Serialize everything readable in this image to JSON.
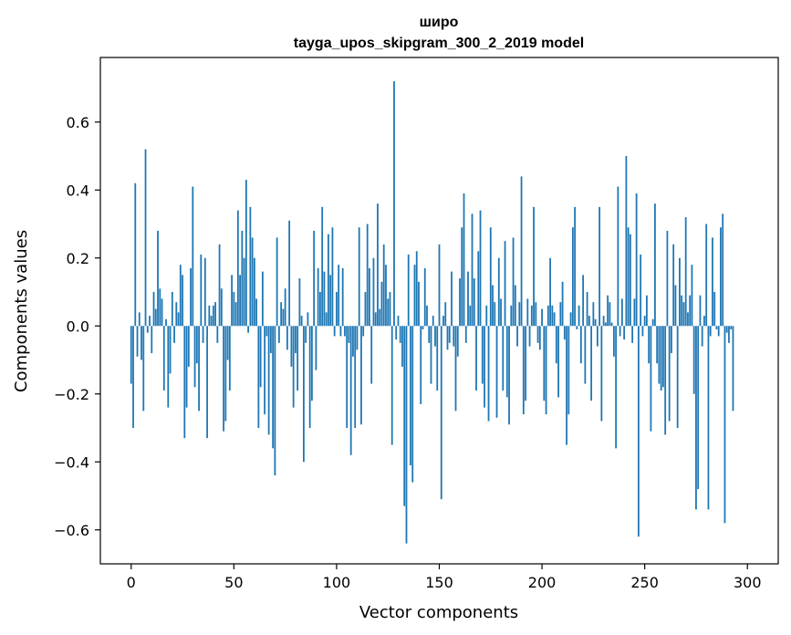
{
  "chart_data": {
    "type": "bar",
    "title": "широ",
    "subtitle": "tayga_upos_skipgram_300_2_2019 model",
    "xlabel": "Vector components",
    "ylabel": "Components values",
    "xlim": [
      -15,
      315
    ],
    "ylim": [
      -0.7,
      0.79
    ],
    "xticks": [
      0,
      50,
      100,
      150,
      200,
      250,
      300
    ],
    "yticks": [
      -0.6,
      -0.4,
      -0.2,
      0.0,
      0.2,
      0.4,
      0.6
    ],
    "ytick_labels": [
      "−0.6",
      "−0.4",
      "−0.2",
      "0.0",
      "0.2",
      "0.4",
      "0.6"
    ],
    "bar_color": "#1f77b4",
    "values": [
      -0.17,
      -0.3,
      0.42,
      -0.09,
      0.04,
      -0.1,
      -0.25,
      0.52,
      -0.02,
      0.03,
      -0.08,
      0.1,
      0.05,
      0.28,
      0.11,
      0.08,
      -0.19,
      0.02,
      -0.24,
      -0.14,
      0.1,
      -0.05,
      0.07,
      0.04,
      0.18,
      0.15,
      -0.33,
      -0.24,
      -0.12,
      0.17,
      0.41,
      -0.18,
      -0.11,
      -0.25,
      0.21,
      -0.05,
      0.2,
      -0.33,
      0.06,
      0.03,
      0.06,
      0.07,
      -0.05,
      0.24,
      0.11,
      -0.31,
      -0.28,
      -0.1,
      -0.19,
      0.15,
      0.1,
      0.07,
      0.34,
      0.15,
      0.28,
      0.2,
      0.43,
      -0.02,
      0.35,
      0.26,
      0.2,
      0.08,
      -0.3,
      -0.18,
      0.16,
      -0.26,
      -0.03,
      -0.32,
      -0.08,
      -0.36,
      -0.44,
      0.26,
      -0.05,
      0.07,
      0.05,
      0.11,
      -0.07,
      0.31,
      -0.12,
      -0.24,
      -0.08,
      -0.19,
      0.14,
      0.03,
      -0.4,
      -0.05,
      0.04,
      -0.3,
      -0.22,
      0.28,
      -0.13,
      0.17,
      0.1,
      0.35,
      0.16,
      0.04,
      0.27,
      0.15,
      0.29,
      -0.03,
      0.1,
      0.18,
      -0.03,
      0.17,
      -0.03,
      -0.3,
      -0.05,
      -0.38,
      -0.09,
      -0.3,
      -0.07,
      0.29,
      -0.29,
      -0.03,
      0.1,
      0.3,
      0.17,
      -0.17,
      0.2,
      0.04,
      0.36,
      0.05,
      0.13,
      0.24,
      0.18,
      0.08,
      0.1,
      -0.35,
      0.72,
      -0.04,
      0.03,
      -0.05,
      -0.12,
      -0.53,
      -0.64,
      0.21,
      -0.41,
      -0.46,
      0.18,
      0.22,
      0.13,
      -0.23,
      -0.01,
      0.17,
      0.06,
      -0.05,
      -0.17,
      0.03,
      -0.06,
      -0.19,
      0.24,
      -0.51,
      0.03,
      0.07,
      -0.07,
      -0.05,
      0.16,
      -0.06,
      -0.25,
      -0.09,
      0.14,
      0.29,
      0.39,
      -0.05,
      0.16,
      0.06,
      0.33,
      0.14,
      -0.19,
      0.22,
      0.34,
      -0.17,
      -0.24,
      0.06,
      -0.28,
      0.29,
      0.12,
      0.07,
      -0.27,
      0.2,
      0.08,
      -0.19,
      0.25,
      -0.21,
      -0.29,
      0.06,
      0.26,
      0.12,
      -0.06,
      0.07,
      0.44,
      -0.26,
      -0.22,
      0.08,
      -0.06,
      0.06,
      0.35,
      0.07,
      -0.05,
      -0.07,
      0.05,
      -0.22,
      -0.26,
      0.06,
      0.2,
      0.06,
      0.04,
      -0.11,
      -0.21,
      0.07,
      0.13,
      -0.04,
      -0.35,
      -0.26,
      0.04,
      0.29,
      0.35,
      -0.01,
      0.06,
      -0.11,
      0.15,
      -0.17,
      0.1,
      0.03,
      -0.22,
      0.07,
      0.02,
      -0.06,
      0.35,
      -0.28,
      0.03,
      0.01,
      0.09,
      0.07,
      0.01,
      -0.09,
      -0.36,
      0.41,
      -0.03,
      0.08,
      -0.04,
      0.5,
      0.29,
      0.27,
      -0.05,
      0.08,
      0.39,
      -0.62,
      0.21,
      -0.03,
      0.03,
      0.09,
      -0.11,
      -0.31,
      0.02,
      0.36,
      -0.11,
      -0.17,
      -0.19,
      -0.18,
      -0.32,
      0.28,
      -0.28,
      -0.08,
      0.24,
      0.12,
      -0.3,
      0.2,
      0.09,
      0.07,
      0.32,
      0.04,
      0.09,
      0.18,
      -0.2,
      -0.54,
      -0.48,
      0.09,
      -0.06,
      0.03,
      0.3,
      -0.54,
      -0.03,
      0.26,
      0.1,
      -0.01,
      -0.03,
      0.29,
      0.33,
      -0.58,
      -0.02,
      -0.05,
      -0.01,
      -0.25
    ]
  }
}
